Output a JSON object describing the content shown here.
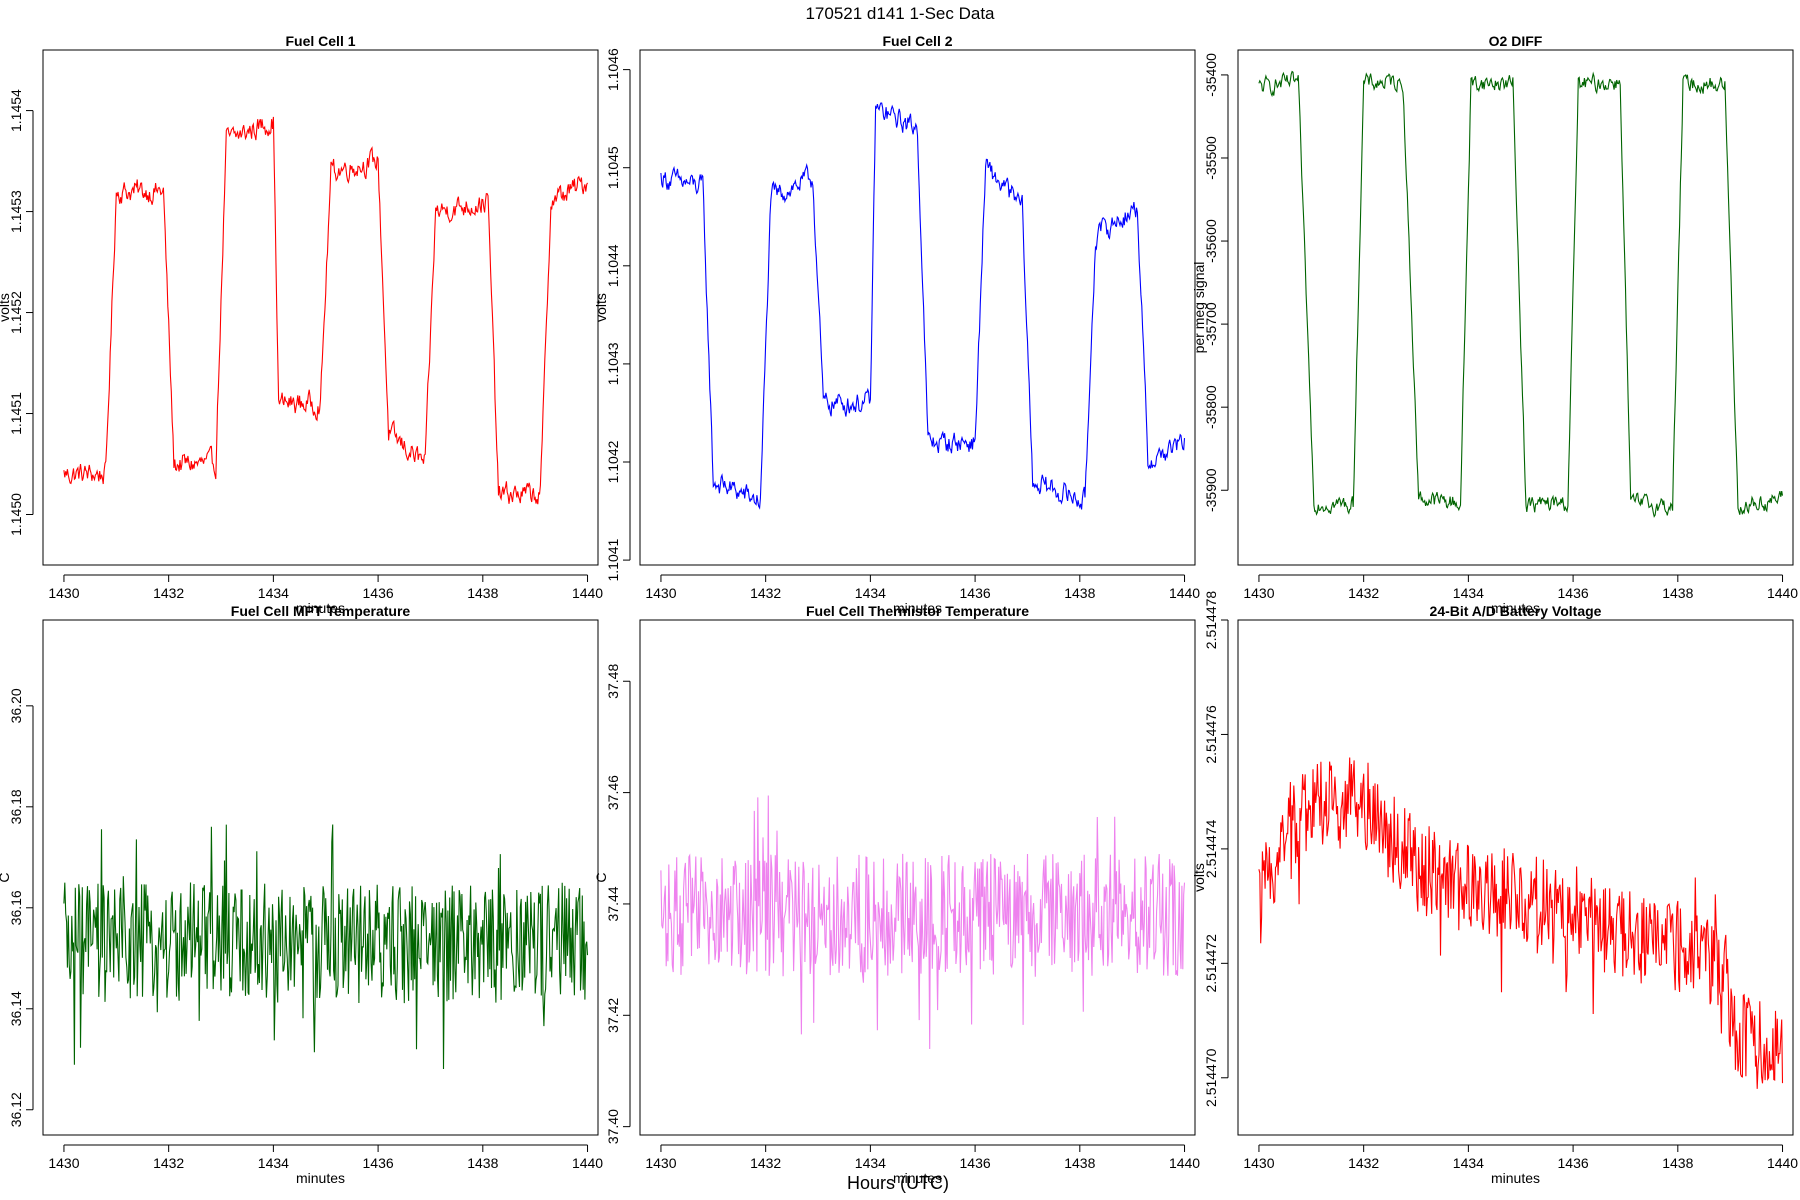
{
  "figure": {
    "suptitle": "170521   d141   1-Sec Data",
    "xlabel": "Hours (UTC)"
  },
  "chart_data": [
    {
      "type": "line",
      "title": "Fuel Cell 1",
      "xlabel": "minutes",
      "ylabel": "volts",
      "color": "#ff0000",
      "xlim": [
        1429.6,
        1440.2
      ],
      "ylim": [
        1.14495,
        1.14546
      ],
      "xticks": [
        1430,
        1432,
        1434,
        1436,
        1438,
        1440
      ],
      "yticks": [
        1.145,
        1.1451,
        1.1452,
        1.1453,
        1.1454
      ],
      "ytick_labels": [
        "1.1450",
        "1.1451",
        "1.1452",
        "1.1453",
        "1.1454"
      ],
      "x": [
        1430.0,
        1430.8,
        1431.0,
        1431.9,
        1432.1,
        1432.9,
        1433.1,
        1434.0,
        1434.1,
        1434.9,
        1435.1,
        1436.0,
        1436.2,
        1436.9,
        1437.1,
        1438.1,
        1438.3,
        1439.1,
        1439.3,
        1440.0
      ],
      "values": [
        1.14504,
        1.14504,
        1.14532,
        1.14532,
        1.14505,
        1.14505,
        1.14537,
        1.14539,
        1.14511,
        1.14511,
        1.14534,
        1.14535,
        1.14508,
        1.14505,
        1.1453,
        1.14531,
        1.14502,
        1.14502,
        1.14531,
        1.14533
      ],
      "noise": 1.3e-05
    },
    {
      "type": "line",
      "title": "Fuel Cell 2",
      "xlabel": "minutes",
      "ylabel": "volts",
      "color": "#0000ff",
      "xlim": [
        1429.6,
        1440.2
      ],
      "ylim": [
        1.104095,
        1.10462
      ],
      "xticks": [
        1430,
        1432,
        1434,
        1436,
        1438,
        1440
      ],
      "yticks": [
        1.1041,
        1.1042,
        1.1043,
        1.1044,
        1.1045,
        1.1046
      ],
      "ytick_labels": [
        "1.1041",
        "1.1042",
        "1.1043",
        "1.1044",
        "1.1045",
        "1.1046"
      ],
      "x": [
        1430.0,
        1430.8,
        1431.0,
        1431.9,
        1432.1,
        1432.9,
        1433.1,
        1434.0,
        1434.1,
        1434.9,
        1435.1,
        1436.0,
        1436.2,
        1436.9,
        1437.1,
        1438.1,
        1438.3,
        1439.1,
        1439.3,
        1440.0
      ],
      "values": [
        1.10449,
        1.10448,
        1.10418,
        1.10416,
        1.10447,
        1.10449,
        1.10426,
        1.10426,
        1.10456,
        1.10454,
        1.10422,
        1.10422,
        1.1045,
        1.10446,
        1.10418,
        1.10416,
        1.10443,
        1.10446,
        1.1042,
        1.10422
      ],
      "noise": 1.3e-05
    },
    {
      "type": "line",
      "title": "O2 DIFF",
      "xlabel": "minutes",
      "ylabel": "per meg signal",
      "color": "#006400",
      "xlim": [
        1429.6,
        1440.2
      ],
      "ylim": [
        -35990,
        -35370
      ],
      "xticks": [
        1430,
        1432,
        1434,
        1436,
        1438,
        1440
      ],
      "yticks": [
        -35900,
        -35800,
        -35700,
        -35600,
        -35500,
        -35400
      ],
      "ytick_labels": [
        "-35900",
        "-35800",
        "-35700",
        "-35600",
        "-35500",
        "-35400"
      ],
      "x": [
        1430.0,
        1430.75,
        1431.05,
        1431.8,
        1432.0,
        1432.75,
        1433.05,
        1433.85,
        1434.05,
        1434.85,
        1435.1,
        1435.9,
        1436.1,
        1436.9,
        1437.1,
        1437.9,
        1438.1,
        1438.9,
        1439.15,
        1440.0
      ],
      "values": [
        -35415,
        -35408,
        -35915,
        -35918,
        -35410,
        -35408,
        -35910,
        -35915,
        -35410,
        -35410,
        -35918,
        -35915,
        -35412,
        -35408,
        -35915,
        -35920,
        -35410,
        -35412,
        -35920,
        -35910
      ],
      "noise": 12
    },
    {
      "type": "line",
      "title": "Fuel Cell MPT Temperature",
      "xlabel": "minutes",
      "ylabel": "C",
      "color": "#006400",
      "xlim": [
        1429.6,
        1440.2
      ],
      "ylim": [
        36.115,
        36.217
      ],
      "xticks": [
        1430,
        1432,
        1434,
        1436,
        1438,
        1440
      ],
      "yticks": [
        36.12,
        36.14,
        36.16,
        36.18,
        36.2
      ],
      "ytick_labels": [
        "36.12",
        "36.14",
        "36.16",
        "36.18",
        "36.20"
      ],
      "x": [
        1430.0,
        1440.0
      ],
      "values": [
        36.153,
        36.153
      ],
      "noise": 0.012
    },
    {
      "type": "line",
      "title": "Fuel Cell Thermistor Temperature",
      "xlabel": "minutes",
      "ylabel": "C",
      "color": "#ee82ee",
      "xlim": [
        1429.6,
        1440.2
      ],
      "ylim": [
        37.3985,
        37.491
      ],
      "xticks": [
        1430,
        1432,
        1434,
        1436,
        1438,
        1440
      ],
      "yticks": [
        37.4,
        37.42,
        37.44,
        37.46,
        37.48
      ],
      "ytick_labels": [
        "37.40",
        "37.42",
        "37.44",
        "37.46",
        "37.48"
      ],
      "x": [
        1430.0,
        1440.0
      ],
      "values": [
        37.438,
        37.438
      ],
      "noise": 0.011
    },
    {
      "type": "line",
      "title": "24-Bit A/D Battery Voltage",
      "xlabel": "minutes",
      "ylabel": "volts",
      "color": "#ff0000",
      "xlim": [
        1429.6,
        1440.2
      ],
      "ylim": [
        2.514469,
        2.514478
      ],
      "xticks": [
        1430,
        1432,
        1434,
        1436,
        1438,
        1440
      ],
      "yticks": [
        2.51447,
        2.514472,
        2.514474,
        2.514476,
        2.514478
      ],
      "ytick_labels": [
        "2.514470",
        "2.514472",
        "2.514474",
        "2.514476",
        "2.514478"
      ],
      "x": [
        1430.0,
        1430.5,
        1431.0,
        1432.0,
        1433.0,
        1434.0,
        1435.0,
        1436.0,
        1437.0,
        1438.0,
        1438.9,
        1439.1,
        1440.0
      ],
      "values": [
        2.514473,
        2.5144743,
        2.5144748,
        2.5144748,
        2.5144737,
        2.5144733,
        2.5144732,
        2.5144728,
        2.5144725,
        2.5144723,
        2.5144718,
        2.5144707,
        2.5144705
      ],
      "noise": 8e-07
    }
  ]
}
